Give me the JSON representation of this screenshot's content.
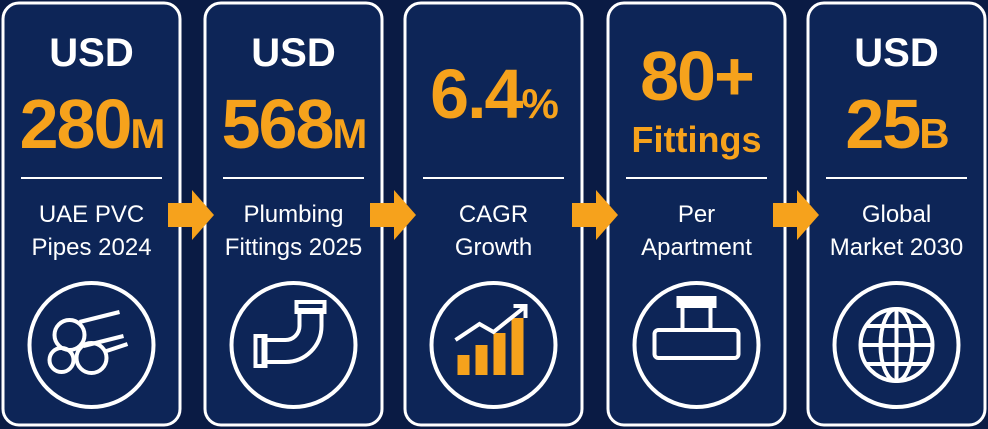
{
  "cards": [
    {
      "prefix": "USD",
      "value": "280",
      "unit": "M",
      "label": [
        "UAE PVC",
        "Pipes 2024"
      ]
    },
    {
      "prefix": "USD",
      "value": "568",
      "unit": "M",
      "label": [
        "Plumbing",
        "Fittings 2025"
      ]
    },
    {
      "value": "6.4",
      "unit": "%",
      "label": [
        "CAGR",
        "Growth"
      ]
    },
    {
      "value": "80+",
      "unit": "Fittings",
      "label": [
        "Per",
        "Apartment"
      ]
    },
    {
      "prefix": "USD",
      "value": "25",
      "unit": "B",
      "label": [
        "Global",
        "Market 2030"
      ]
    }
  ]
}
